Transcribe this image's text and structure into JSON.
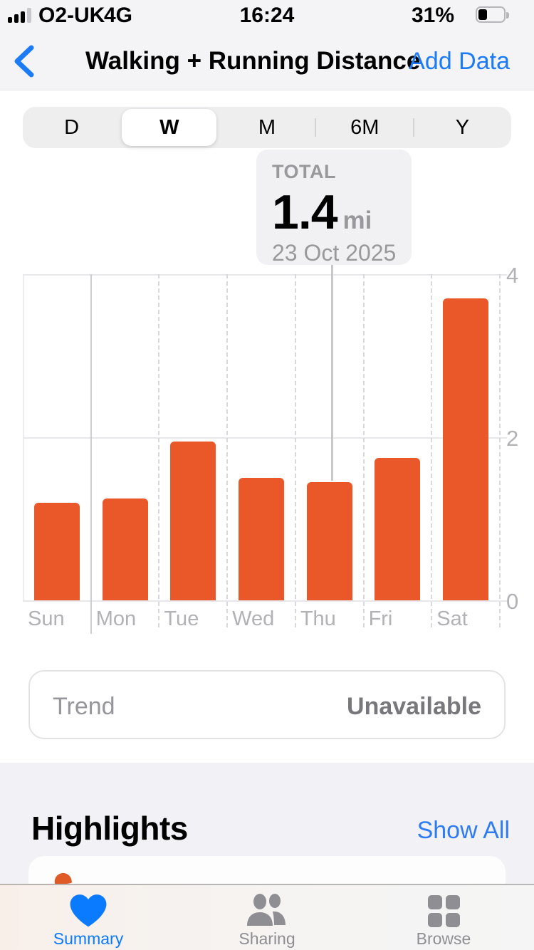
{
  "status_bar": {
    "carrier": "O2-UK",
    "network": "4G",
    "time": "16:24",
    "battery_percent": "31%"
  },
  "nav": {
    "title": "Walking + Running Distance",
    "add_data_label": "Add Data"
  },
  "time_range_control": {
    "options": [
      "D",
      "W",
      "M",
      "6M",
      "Y"
    ],
    "selected": "W"
  },
  "tooltip": {
    "label": "TOTAL",
    "value": "1.4",
    "unit": "mi",
    "date": "23 Oct 2025"
  },
  "chart_data": {
    "type": "bar",
    "title": "Walking + Running Distance (week)",
    "categories": [
      "Sun",
      "Mon",
      "Tue",
      "Wed",
      "Thu",
      "Fri",
      "Sat"
    ],
    "values": [
      1.2,
      1.25,
      1.95,
      1.5,
      1.45,
      1.75,
      3.7
    ],
    "unit": "mi",
    "ylim": [
      0,
      4
    ],
    "yticks": [
      "0",
      "2",
      "4"
    ],
    "xlabel": "",
    "ylabel": "",
    "legend": "none",
    "grid": "horizontal solid lines at 0/2/4, vertical dashed day separators",
    "bar_color": "#EA5728",
    "selected_bar": {
      "category": "Thu",
      "total": "1.4",
      "unit": "mi",
      "date": "23 Oct 2025"
    }
  },
  "trend": {
    "label": "Trend",
    "value": "Unavailable"
  },
  "highlights": {
    "title": "Highlights",
    "action": "Show All"
  },
  "tab_bar": {
    "items": [
      {
        "label": "Summary",
        "icon": "heart-icon",
        "active": true
      },
      {
        "label": "Sharing",
        "icon": "people-icon",
        "active": false
      },
      {
        "label": "Browse",
        "icon": "grid-icon",
        "active": false
      }
    ]
  },
  "colors": {
    "accent_blue": "#0A7AFF",
    "bar_orange": "#EA5728",
    "tooltip_bg": "#F1F1F4"
  }
}
